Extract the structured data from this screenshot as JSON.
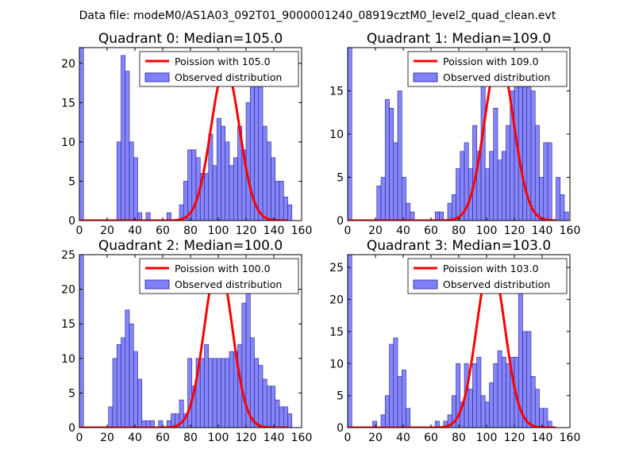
{
  "suptitle": "Data file: modeM0/AS1A03_092T01_9000001240_08919cztM0_level2_quad_clean.evt",
  "colors": {
    "bar_fill": "#8080f6",
    "bar_stroke": "#2020a0",
    "poisson": "#ff0000",
    "axis": "#000000"
  },
  "legend_labels": {
    "observed": "Observed distribution"
  },
  "chart_data": [
    {
      "type": "bar",
      "title": "Quadrant 0: Median=105.0",
      "legend_poisson": "Poission with 105.0",
      "legend_position": "top-right",
      "median": 105.0,
      "xlim": [
        0,
        160
      ],
      "ylim": [
        0,
        22
      ],
      "xticks": [
        "0",
        "20",
        "40",
        "60",
        "80",
        "100",
        "120",
        "140",
        "160"
      ],
      "yticks": [
        "0",
        "5",
        "10",
        "15",
        "20"
      ],
      "bin_width": 3,
      "bins": [
        [
          0,
          22
        ],
        [
          27,
          10
        ],
        [
          30,
          21
        ],
        [
          33,
          19
        ],
        [
          36,
          10
        ],
        [
          39,
          8
        ],
        [
          42,
          1
        ],
        [
          48,
          1
        ],
        [
          63,
          1
        ],
        [
          72,
          2
        ],
        [
          75,
          5
        ],
        [
          78,
          9
        ],
        [
          81,
          9
        ],
        [
          84,
          8
        ],
        [
          87,
          6
        ],
        [
          90,
          6
        ],
        [
          93,
          11
        ],
        [
          96,
          7
        ],
        [
          99,
          13
        ],
        [
          102,
          12
        ],
        [
          105,
          10
        ],
        [
          108,
          7
        ],
        [
          111,
          8
        ],
        [
          114,
          12
        ],
        [
          117,
          9
        ],
        [
          120,
          15
        ],
        [
          123,
          18
        ],
        [
          126,
          19
        ],
        [
          129,
          18
        ],
        [
          132,
          12
        ],
        [
          135,
          10
        ],
        [
          138,
          8
        ],
        [
          141,
          5
        ],
        [
          144,
          5
        ],
        [
          147,
          3
        ],
        [
          150,
          2
        ]
      ],
      "poisson_peak": 19.5
    },
    {
      "type": "bar",
      "title": "Quadrant 1: Median=109.0",
      "legend_poisson": "Poission with 109.0",
      "legend_position": "top-right",
      "median": 109.0,
      "xlim": [
        0,
        160
      ],
      "ylim": [
        0,
        20
      ],
      "xticks": [
        "0",
        "20",
        "40",
        "60",
        "80",
        "100",
        "120",
        "140",
        "160"
      ],
      "yticks": [
        "0",
        "5",
        "10",
        "15"
      ],
      "bin_width": 3,
      "bins": [
        [
          0,
          20
        ],
        [
          21,
          4
        ],
        [
          24,
          5
        ],
        [
          27,
          14
        ],
        [
          30,
          13
        ],
        [
          33,
          9
        ],
        [
          36,
          15
        ],
        [
          39,
          5
        ],
        [
          42,
          2
        ],
        [
          45,
          1
        ],
        [
          63,
          1
        ],
        [
          66,
          1
        ],
        [
          72,
          2
        ],
        [
          75,
          3
        ],
        [
          78,
          6
        ],
        [
          81,
          8
        ],
        [
          84,
          9
        ],
        [
          87,
          6
        ],
        [
          90,
          11
        ],
        [
          93,
          8
        ],
        [
          96,
          16
        ],
        [
          99,
          6
        ],
        [
          102,
          8
        ],
        [
          105,
          13
        ],
        [
          108,
          7
        ],
        [
          111,
          8
        ],
        [
          114,
          11
        ],
        [
          117,
          15
        ],
        [
          120,
          17
        ],
        [
          123,
          17
        ],
        [
          126,
          17
        ],
        [
          129,
          16
        ],
        [
          132,
          15
        ],
        [
          135,
          11
        ],
        [
          138,
          5
        ],
        [
          141,
          9
        ],
        [
          144,
          9
        ],
        [
          150,
          5
        ],
        [
          153,
          3
        ],
        [
          156,
          1
        ]
      ],
      "poisson_peak": 19
    },
    {
      "type": "bar",
      "title": "Quadrant 2: Median=100.0",
      "legend_poisson": "Poission with 100.0",
      "legend_position": "top-right",
      "median": 100.0,
      "xlim": [
        0,
        160
      ],
      "ylim": [
        0,
        25
      ],
      "xticks": [
        "0",
        "20",
        "40",
        "60",
        "80",
        "100",
        "120",
        "140",
        "160"
      ],
      "yticks": [
        "0",
        "5",
        "10",
        "15",
        "20",
        "25"
      ],
      "bin_width": 3,
      "bins": [
        [
          0,
          25
        ],
        [
          21,
          3
        ],
        [
          24,
          10
        ],
        [
          27,
          12
        ],
        [
          30,
          13
        ],
        [
          33,
          17
        ],
        [
          36,
          15
        ],
        [
          39,
          11
        ],
        [
          42,
          7
        ],
        [
          45,
          1
        ],
        [
          48,
          1
        ],
        [
          51,
          1
        ],
        [
          57,
          1
        ],
        [
          63,
          1
        ],
        [
          66,
          2
        ],
        [
          69,
          2
        ],
        [
          72,
          4
        ],
        [
          75,
          2
        ],
        [
          78,
          10
        ],
        [
          81,
          6
        ],
        [
          84,
          10
        ],
        [
          87,
          10
        ],
        [
          90,
          12
        ],
        [
          93,
          10
        ],
        [
          96,
          10
        ],
        [
          99,
          10
        ],
        [
          102,
          10
        ],
        [
          105,
          10
        ],
        [
          108,
          11
        ],
        [
          111,
          11
        ],
        [
          114,
          12
        ],
        [
          117,
          18
        ],
        [
          120,
          24
        ],
        [
          123,
          13
        ],
        [
          126,
          10
        ],
        [
          129,
          9
        ],
        [
          132,
          7
        ],
        [
          135,
          6
        ],
        [
          138,
          6
        ],
        [
          141,
          4
        ],
        [
          144,
          3
        ],
        [
          147,
          3
        ],
        [
          150,
          2
        ]
      ],
      "poisson_peak": 24
    },
    {
      "type": "bar",
      "title": "Quadrant 3: Median=103.0",
      "legend_poisson": "Poission with 103.0",
      "legend_position": "top-right",
      "median": 103.0,
      "xlim": [
        0,
        160
      ],
      "ylim": [
        0,
        27
      ],
      "xticks": [
        "0",
        "20",
        "40",
        "60",
        "80",
        "100",
        "120",
        "140",
        "160"
      ],
      "yticks": [
        "0",
        "5",
        "10",
        "15",
        "20",
        "25"
      ],
      "bin_width": 3,
      "bins": [
        [
          0,
          27
        ],
        [
          18,
          1
        ],
        [
          24,
          2
        ],
        [
          27,
          5
        ],
        [
          30,
          13
        ],
        [
          33,
          14
        ],
        [
          36,
          8
        ],
        [
          39,
          9
        ],
        [
          42,
          3
        ],
        [
          63,
          1
        ],
        [
          69,
          1
        ],
        [
          72,
          2
        ],
        [
          75,
          5
        ],
        [
          78,
          10
        ],
        [
          81,
          4
        ],
        [
          84,
          10
        ],
        [
          87,
          6
        ],
        [
          90,
          10
        ],
        [
          93,
          11
        ],
        [
          96,
          5
        ],
        [
          99,
          4
        ],
        [
          102,
          7
        ],
        [
          105,
          10
        ],
        [
          108,
          12
        ],
        [
          111,
          11
        ],
        [
          114,
          10
        ],
        [
          117,
          11
        ],
        [
          120,
          11
        ],
        [
          123,
          21
        ],
        [
          126,
          15
        ],
        [
          129,
          15
        ],
        [
          132,
          8
        ],
        [
          135,
          6
        ],
        [
          138,
          3
        ],
        [
          141,
          3
        ],
        [
          144,
          1
        ]
      ],
      "poisson_peak": 26
    }
  ]
}
